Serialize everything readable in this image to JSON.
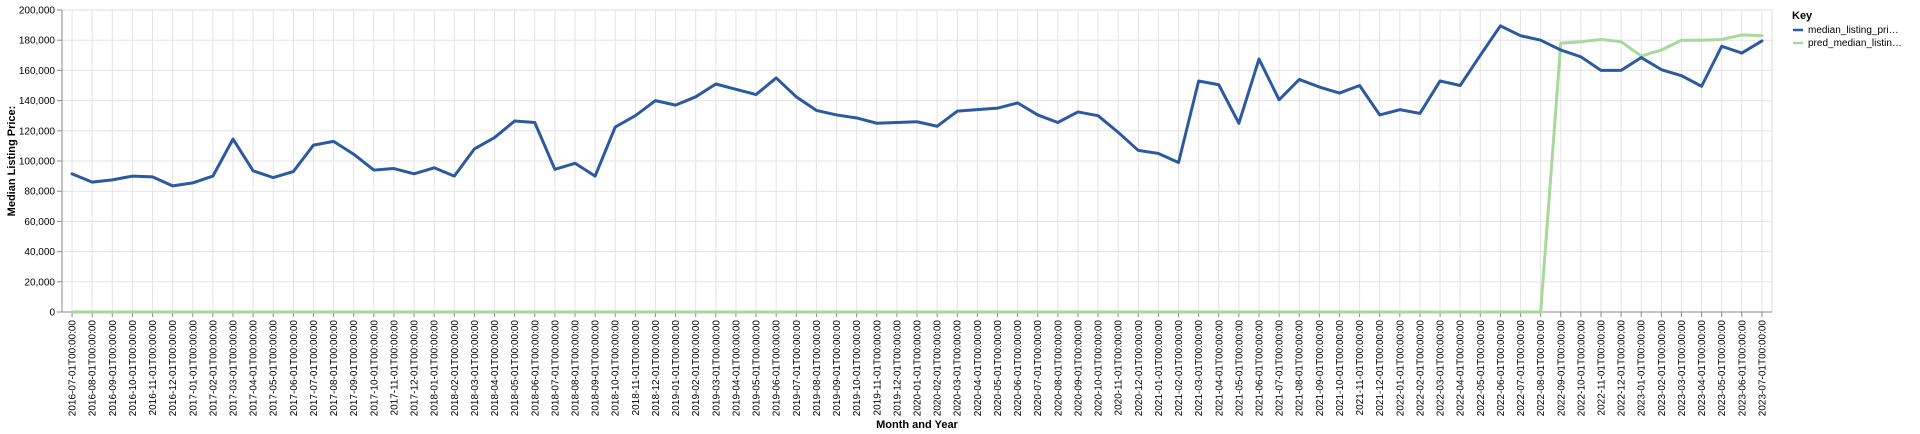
{
  "chart_data": {
    "type": "line",
    "xlabel": "Month and Year",
    "ylabel": "Median Listing Price:",
    "ylim": [
      0,
      200000
    ],
    "yticks": [
      "0",
      "20,000",
      "40,000",
      "60,000",
      "80,000",
      "100,000",
      "120,000",
      "140,000",
      "160,000",
      "180,000",
      "200,000"
    ],
    "grid": true,
    "legend": {
      "title": "Key",
      "placement": "top-right"
    },
    "x": [
      "2016-07-01T00:00:00",
      "2016-08-01T00:00:00",
      "2016-09-01T00:00:00",
      "2016-10-01T00:00:00",
      "2016-11-01T00:00:00",
      "2016-12-01T00:00:00",
      "2017-01-01T00:00:00",
      "2017-02-01T00:00:00",
      "2017-03-01T00:00:00",
      "2017-04-01T00:00:00",
      "2017-05-01T00:00:00",
      "2017-06-01T00:00:00",
      "2017-07-01T00:00:00",
      "2017-08-01T00:00:00",
      "2017-09-01T00:00:00",
      "2017-10-01T00:00:00",
      "2017-11-01T00:00:00",
      "2017-12-01T00:00:00",
      "2018-01-01T00:00:00",
      "2018-02-01T00:00:00",
      "2018-03-01T00:00:00",
      "2018-04-01T00:00:00",
      "2018-05-01T00:00:00",
      "2018-06-01T00:00:00",
      "2018-07-01T00:00:00",
      "2018-08-01T00:00:00",
      "2018-09-01T00:00:00",
      "2018-10-01T00:00:00",
      "2018-11-01T00:00:00",
      "2018-12-01T00:00:00",
      "2019-01-01T00:00:00",
      "2019-02-01T00:00:00",
      "2019-03-01T00:00:00",
      "2019-04-01T00:00:00",
      "2019-05-01T00:00:00",
      "2019-06-01T00:00:00",
      "2019-07-01T00:00:00",
      "2019-08-01T00:00:00",
      "2019-09-01T00:00:00",
      "2019-10-01T00:00:00",
      "2019-11-01T00:00:00",
      "2019-12-01T00:00:00",
      "2020-01-01T00:00:00",
      "2020-02-01T00:00:00",
      "2020-03-01T00:00:00",
      "2020-04-01T00:00:00",
      "2020-05-01T00:00:00",
      "2020-06-01T00:00:00",
      "2020-07-01T00:00:00",
      "2020-08-01T00:00:00",
      "2020-09-01T00:00:00",
      "2020-10-01T00:00:00",
      "2020-11-01T00:00:00",
      "2020-12-01T00:00:00",
      "2021-01-01T00:00:00",
      "2021-02-01T00:00:00",
      "2021-03-01T00:00:00",
      "2021-04-01T00:00:00",
      "2021-05-01T00:00:00",
      "2021-06-01T00:00:00",
      "2021-07-01T00:00:00",
      "2021-08-01T00:00:00",
      "2021-09-01T00:00:00",
      "2021-10-01T00:00:00",
      "2021-11-01T00:00:00",
      "2021-12-01T00:00:00",
      "2022-01-01T00:00:00",
      "2022-02-01T00:00:00",
      "2022-03-01T00:00:00",
      "2022-04-01T00:00:00",
      "2022-05-01T00:00:00",
      "2022-06-01T00:00:00",
      "2022-07-01T00:00:00",
      "2022-08-01T00:00:00",
      "2022-09-01T00:00:00",
      "2022-10-01T00:00:00",
      "2022-11-01T00:00:00",
      "2022-12-01T00:00:00",
      "2023-01-01T00:00:00",
      "2023-02-01T00:00:00",
      "2023-03-01T00:00:00",
      "2023-04-01T00:00:00",
      "2023-05-01T00:00:00",
      "2023-06-01T00:00:00",
      "2023-07-01T00:00:00"
    ],
    "series": [
      {
        "name": "median_listing_pri…",
        "color": "#2c5aa0",
        "values": [
          91500,
          86000,
          87500,
          90000,
          89500,
          83500,
          85500,
          90000,
          114500,
          93500,
          89000,
          93000,
          110500,
          113000,
          104500,
          94000,
          95000,
          91500,
          95500,
          90000,
          108000,
          115500,
          126500,
          125500,
          94500,
          98500,
          90000,
          122500,
          130000,
          140000,
          137000,
          142500,
          151000,
          147500,
          144000,
          155000,
          142500,
          133500,
          130500,
          128500,
          125000,
          125500,
          126000,
          123000,
          133000,
          134000,
          135000,
          138500,
          130500,
          125500,
          132500,
          130000,
          119000,
          107000,
          105000,
          99000,
          153000,
          150500,
          125000,
          167500,
          140500,
          154000,
          149000,
          145000,
          150000,
          130500,
          134000,
          131500,
          153000,
          150000,
          170000,
          189500,
          183000,
          180000,
          173500,
          169000,
          160000,
          160000,
          168500,
          160500,
          156500,
          149500,
          176000,
          171500,
          179500
        ]
      },
      {
        "name": "pred_median_listin…",
        "color": "#a6d99a",
        "values": [
          0,
          0,
          0,
          0,
          0,
          0,
          0,
          0,
          0,
          0,
          0,
          0,
          0,
          0,
          0,
          0,
          0,
          0,
          0,
          0,
          0,
          0,
          0,
          0,
          0,
          0,
          0,
          0,
          0,
          0,
          0,
          0,
          0,
          0,
          0,
          0,
          0,
          0,
          0,
          0,
          0,
          0,
          0,
          0,
          0,
          0,
          0,
          0,
          0,
          0,
          0,
          0,
          0,
          0,
          0,
          0,
          0,
          0,
          0,
          0,
          0,
          0,
          0,
          0,
          0,
          0,
          0,
          0,
          0,
          0,
          0,
          0,
          0,
          0,
          178000,
          179000,
          180500,
          179000,
          169500,
          173500,
          180000,
          180000,
          180500,
          183500,
          183000
        ]
      }
    ]
  }
}
